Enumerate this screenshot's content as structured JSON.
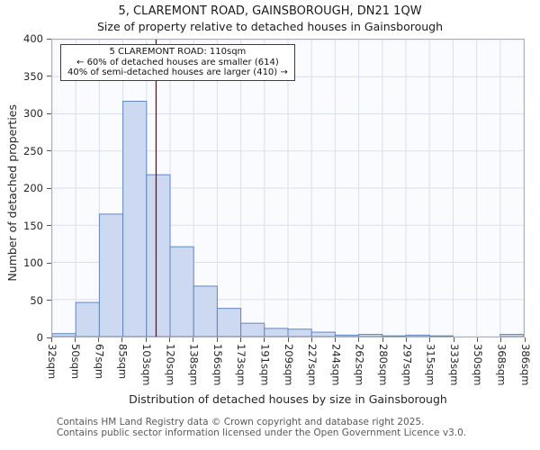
{
  "title": "5, CLAREMONT ROAD, GAINSBOROUGH, DN21 1QW",
  "subtitle": "Size of property relative to detached houses in Gainsborough",
  "ylabel": "Number of detached properties",
  "xlabel": "Distribution of detached houses by size in Gainsborough",
  "annotation": {
    "line1": "5 CLAREMONT ROAD: 110sqm",
    "line2": "← 60% of detached houses are smaller (614)",
    "line3": "40% of semi-detached houses are larger (410) →"
  },
  "footer": {
    "line1": "Contains HM Land Registry data © Crown copyright and database right 2025.",
    "line2": "Contains public sector information licensed under the Open Government Licence v3.0."
  },
  "chart_data": {
    "type": "bar",
    "title": "5, CLAREMONT ROAD, GAINSBOROUGH, DN21 1QW — Size of property relative to detached houses in Gainsborough",
    "categories": [
      "32sqm",
      "50sqm",
      "67sqm",
      "85sqm",
      "103sqm",
      "120sqm",
      "138sqm",
      "156sqm",
      "173sqm",
      "191sqm",
      "209sqm",
      "227sqm",
      "244sqm",
      "262sqm",
      "280sqm",
      "297sqm",
      "315sqm",
      "333sqm",
      "350sqm",
      "368sqm",
      "386sqm"
    ],
    "values": [
      4,
      46,
      165,
      317,
      218,
      121,
      68,
      38,
      18,
      11,
      10,
      6,
      2,
      3,
      1,
      2,
      1,
      0,
      0,
      3
    ],
    "xlabel": "Distribution of detached houses by size in Gainsborough",
    "ylabel": "Number of detached properties",
    "ylim": [
      0,
      400
    ],
    "yticks": [
      0,
      50,
      100,
      150,
      200,
      250,
      300,
      350,
      400
    ],
    "x_start_sqm": 32,
    "x_end_sqm": 386,
    "marker_value_sqm": 110,
    "grid": true,
    "grid_color": "#d9dfec",
    "bar_fill": "#ccd9f1",
    "bar_stroke": "#5f87c3",
    "marker_color": "#a00000",
    "annotation_border_color": "#cc0000"
  }
}
